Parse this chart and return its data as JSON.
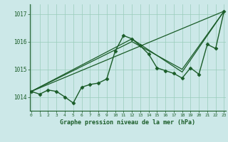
{
  "xlabel": "Graphe pression niveau de la mer (hPa)",
  "background_color": "#cce8e8",
  "grid_color": "#99ccbb",
  "line_color": "#1a5c28",
  "xmin": 0,
  "xmax": 23,
  "ymin": 1013.5,
  "ymax": 1017.35,
  "yticks": [
    1014,
    1015,
    1016,
    1017
  ],
  "xticks": [
    0,
    1,
    2,
    3,
    4,
    5,
    6,
    7,
    8,
    9,
    10,
    11,
    12,
    13,
    14,
    15,
    16,
    17,
    18,
    19,
    20,
    21,
    22,
    23
  ],
  "series_main": {
    "x": [
      0,
      1,
      2,
      3,
      4,
      5,
      6,
      7,
      8,
      9,
      10,
      11,
      12,
      13,
      14,
      15,
      16,
      17,
      18,
      19,
      20,
      21,
      22,
      23
    ],
    "y": [
      1014.2,
      1014.1,
      1014.25,
      1014.2,
      1014.0,
      1013.78,
      1014.35,
      1014.45,
      1014.5,
      1014.65,
      1015.65,
      1016.22,
      1016.1,
      1015.85,
      1015.55,
      1015.05,
      1014.95,
      1014.85,
      1014.68,
      1015.05,
      1014.82,
      1015.9,
      1015.75,
      1017.1
    ]
  },
  "series_trend": [
    {
      "x": [
        0,
        23
      ],
      "y": [
        1014.2,
        1017.1
      ]
    },
    {
      "x": [
        0,
        12,
        18,
        23
      ],
      "y": [
        1014.2,
        1016.1,
        1014.9,
        1017.1
      ]
    },
    {
      "x": [
        0,
        12,
        18,
        23
      ],
      "y": [
        1014.2,
        1016.0,
        1015.0,
        1017.1
      ]
    }
  ]
}
